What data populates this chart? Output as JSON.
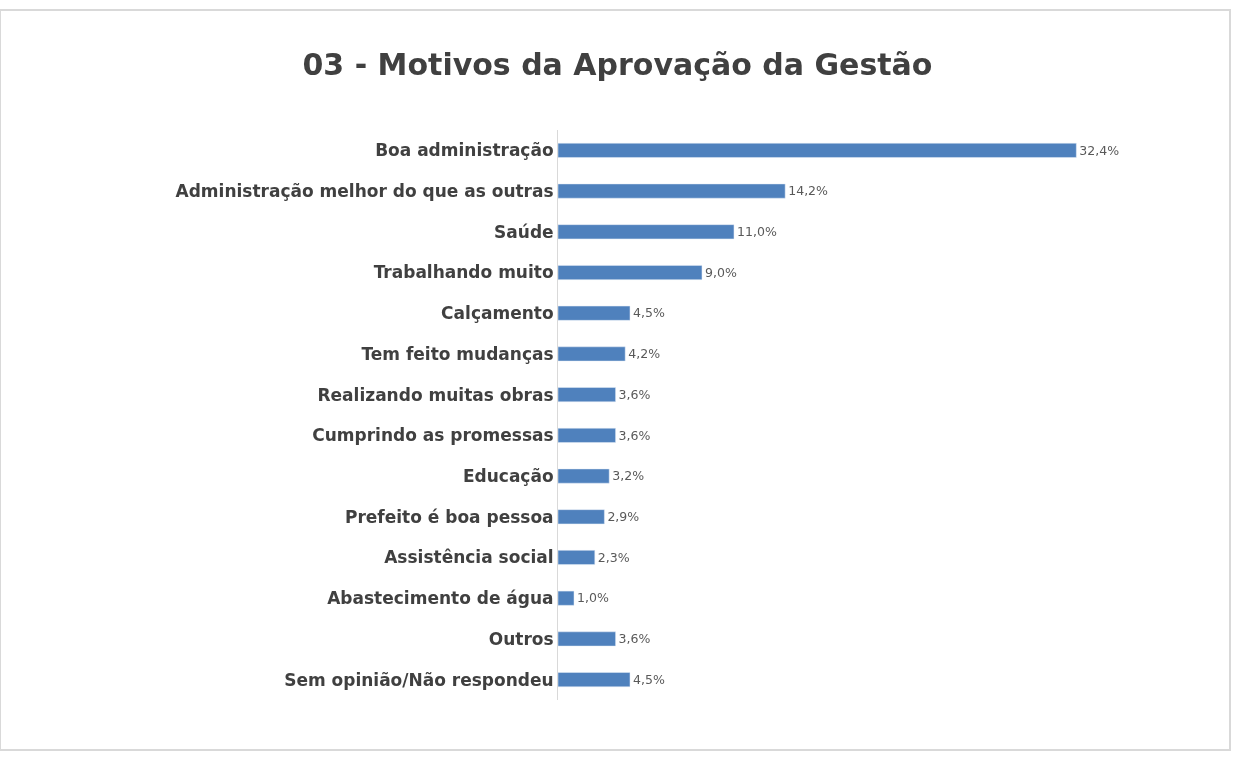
{
  "chart_data": {
    "type": "bar",
    "orientation": "horizontal",
    "title": "03 - Motivos da Aprovação da Gestão",
    "categories": [
      "Boa administração",
      "Administração melhor do que as outras",
      "Saúde",
      "Trabalhando muito",
      "Calçamento",
      "Tem feito mudanças",
      "Realizando muitas obras",
      "Cumprindo as promessas",
      "Educação",
      "Prefeito é boa pessoa",
      "Assistência social",
      "Abastecimento de água",
      "Outros",
      "Sem opinião/Não respondeu"
    ],
    "values": [
      32.4,
      14.2,
      11.0,
      9.0,
      4.5,
      4.2,
      3.6,
      3.6,
      3.2,
      2.9,
      2.3,
      1.0,
      3.6,
      4.5
    ],
    "value_labels": [
      "32,4%",
      "14,2%",
      "11,0%",
      "9,0%",
      "4,5%",
      "4,2%",
      "3,6%",
      "3,6%",
      "3,2%",
      "2,9%",
      "2,3%",
      "1,0%",
      "3,6%",
      "4,5%"
    ],
    "color": "#4f81bd",
    "tick_labels": "y"
  }
}
